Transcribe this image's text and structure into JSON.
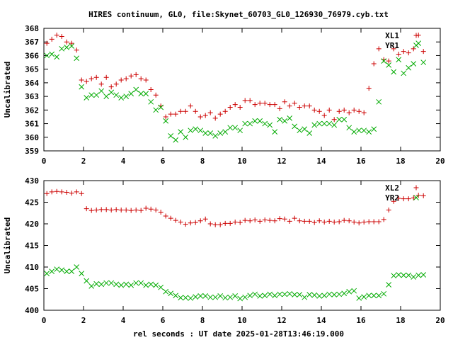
{
  "title": "HIRES continuum, GL0, file:Skynet_60703_GL0_126930_76979.cyb.txt",
  "xlabel": "rel seconds : UT date 2025-01-28T13:46:19.000",
  "colors": {
    "plus": "#cc0000",
    "cross": "#00aa00",
    "axis": "#000000"
  },
  "chart_data": [
    {
      "type": "scatter",
      "ylabel": "Uncalibrated",
      "xlim": [
        0,
        20
      ],
      "ylim": [
        359,
        368
      ],
      "xticks": [
        0,
        2,
        4,
        6,
        8,
        10,
        12,
        14,
        16,
        18,
        20
      ],
      "yticks": [
        359,
        360,
        361,
        362,
        363,
        364,
        365,
        366,
        367,
        368
      ],
      "legend_position": "top-right",
      "series": [
        {
          "name": "XL1",
          "marker": "plus",
          "x": [
            0.15,
            0.4,
            0.65,
            0.9,
            1.15,
            1.4,
            1.65,
            1.9,
            2.15,
            2.4,
            2.65,
            2.9,
            3.15,
            3.4,
            3.65,
            3.9,
            4.15,
            4.4,
            4.65,
            4.9,
            5.15,
            5.4,
            5.65,
            5.9,
            6.15,
            6.4,
            6.65,
            6.9,
            7.15,
            7.4,
            7.65,
            7.9,
            8.15,
            8.4,
            8.65,
            8.9,
            9.15,
            9.4,
            9.65,
            9.9,
            10.15,
            10.4,
            10.65,
            10.9,
            11.15,
            11.4,
            11.65,
            11.9,
            12.15,
            12.4,
            12.65,
            12.9,
            13.15,
            13.4,
            13.65,
            13.9,
            14.15,
            14.4,
            14.65,
            14.9,
            15.15,
            15.4,
            15.65,
            15.9,
            16.15,
            16.4,
            16.65,
            16.9,
            17.15,
            17.4,
            17.65,
            17.9,
            18.15,
            18.4,
            18.65,
            18.9,
            19.15
          ],
          "y": [
            366.9,
            367.2,
            367.5,
            367.4,
            367.0,
            366.9,
            366.4,
            364.2,
            364.1,
            364.3,
            364.4,
            363.9,
            364.4,
            363.7,
            363.9,
            364.2,
            364.3,
            364.5,
            364.6,
            364.3,
            364.2,
            363.5,
            363.1,
            362.3,
            361.5,
            361.7,
            361.7,
            361.9,
            361.9,
            362.3,
            361.9,
            361.5,
            361.6,
            361.8,
            361.4,
            361.7,
            361.9,
            362.2,
            362.4,
            362.2,
            362.7,
            362.7,
            362.4,
            362.5,
            362.5,
            362.4,
            362.4,
            362.1,
            362.6,
            362.3,
            362.5,
            362.2,
            362.3,
            362.3,
            362.0,
            361.9,
            361.6,
            362.0,
            361.3,
            361.9,
            362.0,
            361.8,
            362.0,
            361.9,
            361.8,
            363.6,
            365.4,
            366.5,
            365.7,
            365.6,
            366.5,
            366.1,
            366.3,
            366.2,
            366.5,
            367.5,
            366.3
          ]
        },
        {
          "name": "YR1",
          "marker": "cross",
          "x": [
            0.15,
            0.4,
            0.65,
            0.9,
            1.15,
            1.4,
            1.65,
            1.9,
            2.15,
            2.4,
            2.65,
            2.9,
            3.15,
            3.4,
            3.65,
            3.9,
            4.15,
            4.4,
            4.65,
            4.9,
            5.15,
            5.4,
            5.65,
            5.9,
            6.15,
            6.4,
            6.65,
            6.9,
            7.15,
            7.4,
            7.65,
            7.9,
            8.15,
            8.4,
            8.65,
            8.9,
            9.15,
            9.4,
            9.65,
            9.9,
            10.15,
            10.4,
            10.65,
            10.9,
            11.15,
            11.4,
            11.65,
            11.9,
            12.15,
            12.4,
            12.65,
            12.9,
            13.15,
            13.4,
            13.65,
            13.9,
            14.15,
            14.4,
            14.65,
            14.9,
            15.15,
            15.4,
            15.65,
            15.9,
            16.15,
            16.4,
            16.65,
            16.9,
            17.15,
            17.4,
            17.65,
            17.9,
            18.15,
            18.4,
            18.65,
            18.9,
            19.15
          ],
          "y": [
            366.0,
            366.1,
            365.9,
            366.5,
            366.6,
            366.7,
            365.8,
            363.7,
            362.9,
            363.1,
            363.1,
            363.4,
            363.0,
            363.3,
            363.1,
            362.9,
            363.0,
            363.2,
            363.5,
            363.2,
            363.2,
            362.6,
            362.0,
            362.2,
            361.2,
            360.1,
            359.8,
            360.4,
            360.0,
            360.5,
            360.6,
            360.5,
            360.3,
            360.3,
            360.1,
            360.3,
            360.4,
            360.7,
            360.7,
            360.5,
            361.0,
            361.0,
            361.2,
            361.2,
            361.0,
            360.9,
            360.4,
            361.3,
            361.2,
            361.4,
            360.8,
            360.5,
            360.6,
            360.3,
            360.9,
            361.0,
            361.0,
            361.0,
            360.9,
            361.3,
            361.3,
            360.7,
            360.4,
            360.5,
            360.5,
            360.4,
            360.6,
            362.6,
            365.6,
            365.3,
            364.8,
            365.7,
            364.7,
            365.1,
            365.4,
            366.9,
            365.5
          ]
        }
      ]
    },
    {
      "type": "scatter",
      "ylabel": "Uncalibrated",
      "xlim": [
        0,
        20
      ],
      "ylim": [
        400,
        430
      ],
      "xticks": [
        0,
        2,
        4,
        6,
        8,
        10,
        12,
        14,
        16,
        18,
        20
      ],
      "yticks": [
        400,
        405,
        410,
        415,
        420,
        425,
        430
      ],
      "legend_position": "top-right",
      "series": [
        {
          "name": "XL2",
          "marker": "plus",
          "x": [
            0.15,
            0.4,
            0.65,
            0.9,
            1.15,
            1.4,
            1.65,
            1.9,
            2.15,
            2.4,
            2.65,
            2.9,
            3.15,
            3.4,
            3.65,
            3.9,
            4.15,
            4.4,
            4.65,
            4.9,
            5.15,
            5.4,
            5.65,
            5.9,
            6.15,
            6.4,
            6.65,
            6.9,
            7.15,
            7.4,
            7.65,
            7.9,
            8.15,
            8.4,
            8.65,
            8.9,
            9.15,
            9.4,
            9.65,
            9.9,
            10.15,
            10.4,
            10.65,
            10.9,
            11.15,
            11.4,
            11.65,
            11.9,
            12.15,
            12.4,
            12.65,
            12.9,
            13.15,
            13.4,
            13.65,
            13.9,
            14.15,
            14.4,
            14.65,
            14.9,
            15.15,
            15.4,
            15.65,
            15.9,
            16.15,
            16.4,
            16.65,
            16.9,
            17.15,
            17.4,
            17.65,
            17.9,
            18.15,
            18.4,
            18.65,
            18.9,
            19.15
          ],
          "y": [
            427.0,
            427.4,
            427.5,
            427.4,
            427.3,
            427.1,
            427.4,
            427.0,
            423.5,
            423.1,
            423.2,
            423.3,
            423.3,
            423.2,
            423.3,
            423.2,
            423.2,
            423.1,
            423.2,
            423.1,
            423.6,
            423.4,
            423.2,
            422.7,
            421.8,
            421.3,
            420.8,
            420.4,
            419.9,
            420.2,
            420.3,
            420.7,
            421.1,
            420.0,
            419.8,
            419.8,
            420.1,
            420.1,
            420.4,
            420.3,
            420.8,
            420.7,
            420.9,
            420.6,
            420.9,
            420.8,
            420.7,
            421.2,
            421.1,
            420.6,
            421.3,
            420.7,
            420.6,
            420.6,
            420.3,
            420.7,
            420.4,
            420.6,
            420.4,
            420.5,
            420.8,
            420.7,
            420.4,
            420.2,
            420.4,
            420.5,
            420.5,
            420.5,
            421.0,
            423.2,
            425.2,
            425.9,
            425.8,
            425.8,
            426.0,
            426.6,
            426.5
          ]
        },
        {
          "name": "YR2",
          "marker": "cross",
          "x": [
            0.15,
            0.4,
            0.65,
            0.9,
            1.15,
            1.4,
            1.65,
            1.9,
            2.15,
            2.4,
            2.65,
            2.9,
            3.15,
            3.4,
            3.65,
            3.9,
            4.15,
            4.4,
            4.65,
            4.9,
            5.15,
            5.4,
            5.65,
            5.9,
            6.15,
            6.4,
            6.65,
            6.9,
            7.15,
            7.4,
            7.65,
            7.9,
            8.15,
            8.4,
            8.65,
            8.9,
            9.15,
            9.4,
            9.65,
            9.9,
            10.15,
            10.4,
            10.65,
            10.9,
            11.15,
            11.4,
            11.65,
            11.9,
            12.15,
            12.4,
            12.65,
            12.9,
            13.15,
            13.4,
            13.65,
            13.9,
            14.15,
            14.4,
            14.65,
            14.9,
            15.15,
            15.4,
            15.65,
            15.9,
            16.15,
            16.4,
            16.65,
            16.9,
            17.15,
            17.4,
            17.65,
            17.9,
            18.15,
            18.4,
            18.65,
            18.9,
            19.15
          ],
          "y": [
            408.5,
            409.0,
            409.5,
            409.3,
            409.0,
            409.0,
            410.0,
            408.5,
            406.8,
            405.6,
            406.1,
            406.0,
            406.3,
            406.3,
            406.0,
            405.8,
            406.0,
            405.8,
            406.3,
            406.3,
            405.8,
            406.0,
            405.8,
            405.3,
            404.3,
            403.9,
            403.4,
            402.9,
            402.9,
            402.8,
            403.1,
            403.3,
            403.3,
            403.0,
            403.0,
            403.3,
            402.9,
            403.0,
            403.3,
            402.7,
            403.0,
            403.4,
            403.7,
            403.3,
            403.4,
            403.7,
            403.4,
            403.7,
            403.7,
            403.8,
            403.6,
            403.6,
            403.0,
            403.6,
            403.5,
            403.3,
            403.4,
            403.7,
            403.6,
            403.7,
            403.9,
            404.3,
            404.5,
            402.8,
            403.1,
            403.4,
            403.4,
            403.4,
            403.8,
            405.9,
            408.0,
            408.2,
            408.1,
            408.1,
            407.7,
            408.1,
            408.2
          ]
        }
      ]
    }
  ]
}
